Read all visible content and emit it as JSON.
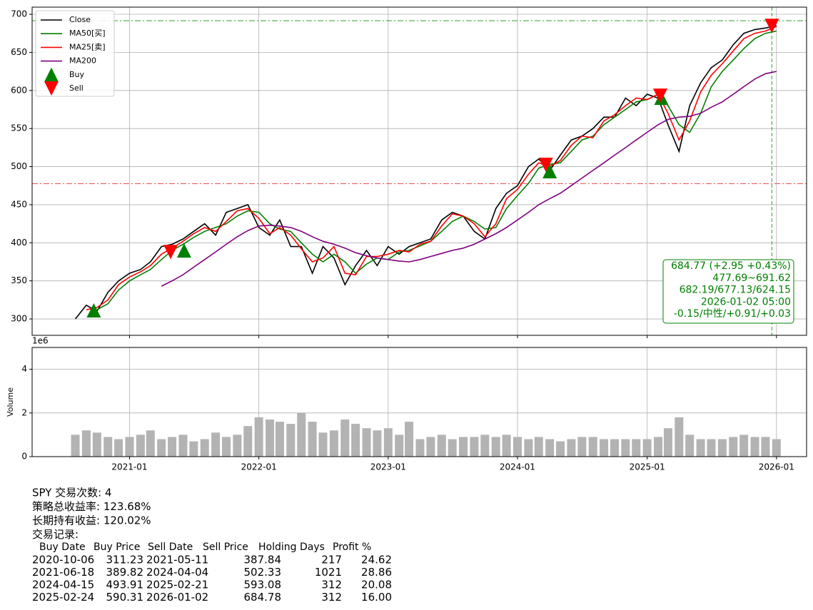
{
  "chart_data": [
    {
      "type": "line",
      "x": [
        "2020-08",
        "2020-09",
        "2020-10",
        "2020-11",
        "2020-12",
        "2021-01",
        "2021-02",
        "2021-03",
        "2021-04",
        "2021-05",
        "2021-06",
        "2021-07",
        "2021-08",
        "2021-09",
        "2021-10",
        "2021-11",
        "2021-12",
        "2022-01",
        "2022-02",
        "2022-03",
        "2022-04",
        "2022-05",
        "2022-06",
        "2022-07",
        "2022-08",
        "2022-09",
        "2022-10",
        "2022-11",
        "2022-12",
        "2023-01",
        "2023-02",
        "2023-03",
        "2023-04",
        "2023-05",
        "2023-06",
        "2023-07",
        "2023-08",
        "2023-09",
        "2023-10",
        "2023-11",
        "2023-12",
        "2024-01",
        "2024-02",
        "2024-03",
        "2024-04",
        "2024-05",
        "2024-06",
        "2024-07",
        "2024-08",
        "2024-09",
        "2024-10",
        "2024-11",
        "2024-12",
        "2025-01",
        "2025-02",
        "2025-03",
        "2025-04",
        "2025-05",
        "2025-06",
        "2025-07",
        "2025-08",
        "2025-09",
        "2025-10",
        "2025-11",
        "2025-12",
        "2026-01"
      ],
      "series": [
        {
          "name": "Close",
          "color": "#000000",
          "values": [
            300,
            318,
            310,
            335,
            350,
            360,
            365,
            375,
            395,
            398,
            405,
            415,
            425,
            410,
            440,
            445,
            450,
            420,
            410,
            430,
            395,
            395,
            360,
            395,
            380,
            345,
            370,
            390,
            370,
            395,
            385,
            395,
            400,
            405,
            430,
            440,
            435,
            415,
            405,
            445,
            465,
            475,
            500,
            510,
            495,
            515,
            535,
            540,
            550,
            565,
            565,
            590,
            580,
            595,
            590,
            555,
            520,
            580,
            610,
            630,
            640,
            660,
            675,
            680,
            682,
            685
          ]
        },
        {
          "name": "MA50[买]",
          "color": "#008000",
          "values": [
            null,
            null,
            312,
            320,
            338,
            350,
            358,
            365,
            378,
            390,
            398,
            407,
            415,
            420,
            425,
            435,
            442,
            440,
            425,
            418,
            415,
            400,
            385,
            375,
            385,
            375,
            360,
            372,
            380,
            378,
            388,
            390,
            396,
            402,
            415,
            428,
            435,
            428,
            418,
            420,
            445,
            462,
            478,
            498,
            503,
            505,
            520,
            535,
            540,
            555,
            565,
            575,
            585,
            588,
            595,
            580,
            555,
            545,
            570,
            605,
            625,
            640,
            655,
            668,
            675,
            678
          ]
        },
        {
          "name": "MA25[卖]",
          "color": "#ff0000",
          "values": [
            null,
            312,
            315,
            325,
            345,
            355,
            362,
            370,
            385,
            393,
            402,
            412,
            420,
            415,
            428,
            442,
            445,
            432,
            412,
            420,
            410,
            392,
            375,
            380,
            395,
            360,
            358,
            382,
            382,
            385,
            390,
            388,
            398,
            402,
            422,
            438,
            435,
            425,
            408,
            425,
            458,
            470,
            490,
            505,
            500,
            508,
            528,
            540,
            538,
            560,
            568,
            580,
            590,
            588,
            595,
            570,
            535,
            560,
            598,
            620,
            635,
            652,
            668,
            675,
            678,
            684
          ]
        },
        {
          "name": "MA200",
          "color": "#800080",
          "values": [
            null,
            null,
            null,
            null,
            null,
            null,
            null,
            null,
            343,
            350,
            358,
            368,
            378,
            388,
            398,
            408,
            416,
            422,
            423,
            422,
            420,
            415,
            408,
            402,
            398,
            393,
            387,
            383,
            380,
            378,
            376,
            375,
            378,
            382,
            386,
            390,
            393,
            398,
            405,
            412,
            420,
            430,
            440,
            450,
            458,
            465,
            475,
            485,
            495,
            505,
            515,
            525,
            535,
            545,
            555,
            562,
            565,
            566,
            570,
            578,
            585,
            595,
            605,
            615,
            622,
            625
          ]
        }
      ],
      "markers": [
        {
          "name": "Buy",
          "color": "#008000",
          "shape": "up",
          "x": [
            "2020-10-06",
            "2021-06-18",
            "2024-04-15",
            "2025-02-24"
          ],
          "values": [
            311.23,
            389.82,
            493.91,
            590.31
          ]
        },
        {
          "name": "Sell",
          "color": "#ff0000",
          "shape": "down",
          "x": [
            "2021-05-11",
            "2024-04-04",
            "2025-02-21",
            "2026-01-02"
          ],
          "values": [
            387.84,
            502.33,
            593.08,
            684.78
          ]
        }
      ],
      "hlines": [
        {
          "value": 691.62,
          "color": "#2ca02c"
        },
        {
          "value": 477.69,
          "color": "#e34a4a"
        }
      ],
      "vlines": [
        {
          "x": "2026-01-02",
          "color": "#2ca02c"
        }
      ],
      "annotation": [
        "684.77 (+2.95 +0.43%)",
        "477.69~691.62",
        "682.19/677.13/624.15",
        "2026-01-02 05:00",
        "-0.15/中性/+0.91/+0.03"
      ],
      "xlim": [
        "2020-04-15",
        "2026-04-10"
      ],
      "xticks": [
        "2021-01",
        "2022-01",
        "2023-01",
        "2024-01",
        "2025-01",
        "2026-01"
      ],
      "ylim": [
        278.5,
        709.4
      ],
      "yticks": [
        300,
        350,
        400,
        450,
        500,
        550,
        600,
        650,
        700
      ],
      "grid": true,
      "legend": "upper left"
    },
    {
      "type": "bar",
      "ylabel": "Volume",
      "offset_label": "1e6",
      "color": "#b3b3b3",
      "x": [
        "2020-08",
        "2020-09",
        "2020-10",
        "2020-11",
        "2020-12",
        "2021-01",
        "2021-02",
        "2021-03",
        "2021-04",
        "2021-05",
        "2021-06",
        "2021-07",
        "2021-08",
        "2021-09",
        "2021-10",
        "2021-11",
        "2021-12",
        "2022-01",
        "2022-02",
        "2022-03",
        "2022-04",
        "2022-05",
        "2022-06",
        "2022-07",
        "2022-08",
        "2022-09",
        "2022-10",
        "2022-11",
        "2022-12",
        "2023-01",
        "2023-02",
        "2023-03",
        "2023-04",
        "2023-05",
        "2023-06",
        "2023-07",
        "2023-08",
        "2023-09",
        "2023-10",
        "2023-11",
        "2023-12",
        "2024-01",
        "2024-02",
        "2024-03",
        "2024-04",
        "2024-05",
        "2024-06",
        "2024-07",
        "2024-08",
        "2024-09",
        "2024-10",
        "2024-11",
        "2024-12",
        "2025-01",
        "2025-02",
        "2025-03",
        "2025-04",
        "2025-05",
        "2025-06",
        "2025-07",
        "2025-08",
        "2025-09",
        "2025-10",
        "2025-11",
        "2025-12",
        "2026-01"
      ],
      "values": [
        1.0,
        1.2,
        1.1,
        0.9,
        0.8,
        0.9,
        1.0,
        1.2,
        0.8,
        0.9,
        1.0,
        0.7,
        0.8,
        1.1,
        0.9,
        1.0,
        1.4,
        1.8,
        1.7,
        1.6,
        1.5,
        2.0,
        1.6,
        1.1,
        1.2,
        1.7,
        1.5,
        1.3,
        1.2,
        1.3,
        1.0,
        1.6,
        0.8,
        0.9,
        1.0,
        0.8,
        0.9,
        0.9,
        1.0,
        0.9,
        1.0,
        0.9,
        0.8,
        0.9,
        0.8,
        0.7,
        0.8,
        0.9,
        0.9,
        0.8,
        0.8,
        0.8,
        0.8,
        0.8,
        0.9,
        1.3,
        1.8,
        1.0,
        0.8,
        0.8,
        0.8,
        0.9,
        1.0,
        0.9,
        0.9,
        0.8
      ],
      "xlim": [
        "2020-04-15",
        "2026-04-10"
      ],
      "xticks": [
        "2021-01",
        "2022-01",
        "2023-01",
        "2024-01",
        "2025-01",
        "2026-01"
      ],
      "ylim": [
        0,
        5
      ],
      "yticks": [
        0,
        2,
        4
      ],
      "grid": true
    }
  ],
  "report": {
    "lines": [
      "SPY 交易次数: 4",
      "策略总收益率: 123.68%",
      "长期持有收益: 120.02%",
      "交易记录:"
    ],
    "header": [
      "Buy Date",
      "Buy Price",
      "Sell Date",
      "Sell Price",
      "Holding Days",
      "Profit %"
    ],
    "rows": [
      [
        "2020-10-06",
        "311.23",
        "2021-05-11",
        "387.84",
        "217",
        "24.62"
      ],
      [
        "2021-06-18",
        "389.82",
        "2024-04-04",
        "502.33",
        "1021",
        "28.86"
      ],
      [
        "2024-04-15",
        "493.91",
        "2025-02-21",
        "593.08",
        "312",
        "20.08"
      ],
      [
        "2025-02-24",
        "590.31",
        "2026-01-02",
        "684.78",
        "312",
        "16.00"
      ]
    ]
  }
}
